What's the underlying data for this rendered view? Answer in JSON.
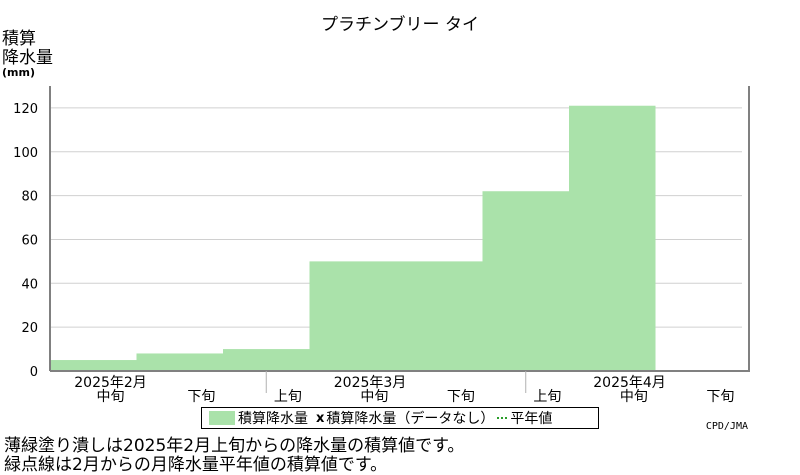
{
  "chart_data": {
    "type": "area",
    "title": "プラチンブリー タイ",
    "ylabel": "積算降水量",
    "yunit": "(mm)",
    "ylim": [
      0,
      130
    ],
    "yticks": [
      0,
      20,
      40,
      60,
      80,
      100,
      120
    ],
    "grid": true,
    "x": [
      "2025年2月中旬",
      "2025年2月下旬",
      "2025年3月上旬",
      "2025年3月中旬",
      "2025年3月下旬",
      "2025年4月上旬",
      "2025年4月中旬",
      "2025年4月下旬"
    ],
    "x_period_labels": [
      "中旬",
      "下旬",
      "上旬",
      "中旬",
      "下旬",
      "上旬",
      "中旬",
      "下旬"
    ],
    "x_month_labels": [
      {
        "label": "2025年2月",
        "center_index": 0
      },
      {
        "label": "2025年3月",
        "center_index": 3
      },
      {
        "label": "2025年4月",
        "center_index": 6
      }
    ],
    "series": [
      {
        "name": "積算降水量",
        "values": [
          5,
          8,
          10,
          50,
          50,
          82,
          121,
          null
        ],
        "color": "#aae2aa"
      }
    ],
    "legend": {
      "entries": [
        "積算降水量",
        "積算降水量（データなし）",
        "平年値"
      ],
      "placement": "bottom"
    },
    "credit": "CPD/JMA"
  },
  "notes": [
    "薄緑塗り潰しは2025年2月上旬からの降水量の積算値です。",
    "緑点線は2月からの月降水量平年値の積算値です。"
  ]
}
